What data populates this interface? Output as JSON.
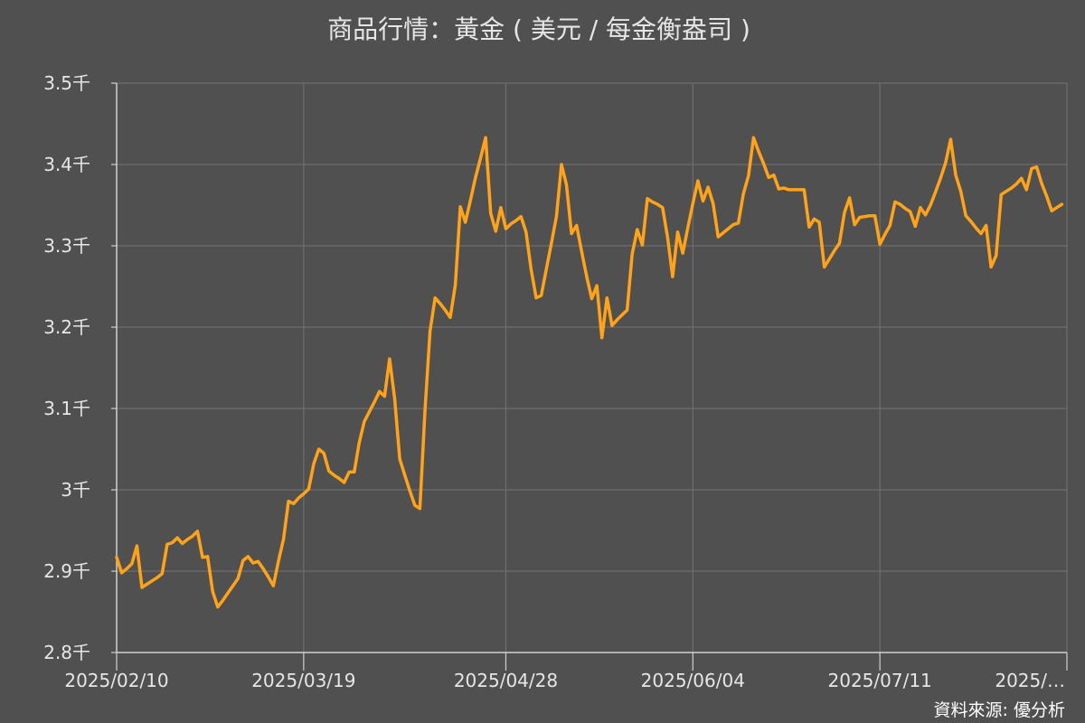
{
  "chart_data": {
    "type": "line",
    "title": "商品行情：黃金 ( 美元 / 每金衡盎司 )",
    "source": "資料來源: 優分析",
    "xlabel": "",
    "ylabel": "",
    "ylim": [
      2.8,
      3.5
    ],
    "y_unit": "千",
    "y_ticks": [
      "2.8千",
      "2.9千",
      "3千",
      "3.1千",
      "3.2千",
      "3.3千",
      "3.4千",
      "3.5千"
    ],
    "y_tick_values": [
      2.8,
      2.9,
      3.0,
      3.1,
      3.2,
      3.3,
      3.4,
      3.5
    ],
    "x_ticks": [
      "2025/02/10",
      "2025/03/19",
      "2025/04/28",
      "2025/06/04",
      "2025/07/11",
      "2025/…"
    ],
    "x_tick_index": [
      0,
      37,
      77,
      114,
      151,
      188
    ],
    "x_span": 188,
    "grid": true,
    "line_color": "#ffa31a",
    "series": [
      {
        "values": [
          [
            0,
            2.917
          ],
          [
            1,
            2.898
          ],
          [
            2,
            2.903
          ],
          [
            3,
            2.909
          ],
          [
            4,
            2.931
          ],
          [
            5,
            2.88
          ],
          [
            6,
            2.884
          ],
          [
            7,
            2.888
          ],
          [
            8,
            2.892
          ],
          [
            9,
            2.897
          ],
          [
            10,
            2.933
          ],
          [
            11,
            2.935
          ],
          [
            12,
            2.941
          ],
          [
            13,
            2.934
          ],
          [
            14,
            2.939
          ],
          [
            15,
            2.943
          ],
          [
            16,
            2.949
          ],
          [
            17,
            2.917
          ],
          [
            18,
            2.918
          ],
          [
            19,
            2.875
          ],
          [
            20,
            2.856
          ],
          [
            21,
            2.864
          ],
          [
            22,
            2.873
          ],
          [
            23,
            2.882
          ],
          [
            24,
            2.891
          ],
          [
            25,
            2.913
          ],
          [
            26,
            2.918
          ],
          [
            27,
            2.91
          ],
          [
            28,
            2.912
          ],
          [
            29,
            2.903
          ],
          [
            30,
            2.893
          ],
          [
            31,
            2.882
          ],
          [
            32,
            2.912
          ],
          [
            33,
            2.939
          ],
          [
            34,
            2.986
          ],
          [
            35,
            2.983
          ],
          [
            36,
            2.99
          ],
          [
            37,
            2.995
          ],
          [
            38,
            3.001
          ],
          [
            39,
            3.032
          ],
          [
            40,
            3.05
          ],
          [
            41,
            3.045
          ],
          [
            42,
            3.023
          ],
          [
            43,
            3.018
          ],
          [
            44,
            3.014
          ],
          [
            45,
            3.009
          ],
          [
            46,
            3.022
          ],
          [
            47,
            3.022
          ],
          [
            48,
            3.058
          ],
          [
            49,
            3.084
          ],
          [
            50,
            3.096
          ],
          [
            51,
            3.108
          ],
          [
            52,
            3.121
          ],
          [
            53,
            3.115
          ],
          [
            54,
            3.161
          ],
          [
            55,
            3.112
          ],
          [
            56,
            3.038
          ],
          [
            57,
            3.018
          ],
          [
            58,
            2.999
          ],
          [
            59,
            2.981
          ],
          [
            60,
            2.977
          ],
          [
            61,
            3.097
          ],
          [
            62,
            3.195
          ],
          [
            63,
            3.236
          ],
          [
            64,
            3.229
          ],
          [
            65,
            3.221
          ],
          [
            66,
            3.212
          ],
          [
            67,
            3.252
          ],
          [
            68,
            3.348
          ],
          [
            69,
            3.329
          ],
          [
            70,
            3.356
          ],
          [
            71,
            3.384
          ],
          [
            72,
            3.408
          ],
          [
            73,
            3.433
          ],
          [
            74,
            3.34
          ],
          [
            75,
            3.318
          ],
          [
            76,
            3.347
          ],
          [
            77,
            3.321
          ],
          [
            78,
            3.327
          ],
          [
            79,
            3.331
          ],
          [
            80,
            3.336
          ],
          [
            81,
            3.317
          ],
          [
            82,
            3.271
          ],
          [
            83,
            3.236
          ],
          [
            84,
            3.239
          ],
          [
            85,
            3.271
          ],
          [
            86,
            3.303
          ],
          [
            87,
            3.336
          ],
          [
            88,
            3.4
          ],
          [
            89,
            3.375
          ],
          [
            90,
            3.315
          ],
          [
            91,
            3.325
          ],
          [
            92,
            3.293
          ],
          [
            93,
            3.262
          ],
          [
            94,
            3.235
          ],
          [
            95,
            3.251
          ],
          [
            96,
            3.187
          ],
          [
            97,
            3.236
          ],
          [
            98,
            3.202
          ],
          [
            99,
            3.209
          ],
          [
            100,
            3.215
          ],
          [
            101,
            3.221
          ],
          [
            102,
            3.29
          ],
          [
            103,
            3.32
          ],
          [
            104,
            3.301
          ],
          [
            105,
            3.358
          ],
          [
            106,
            3.354
          ],
          [
            107,
            3.351
          ],
          [
            108,
            3.347
          ],
          [
            109,
            3.31
          ],
          [
            110,
            3.262
          ],
          [
            111,
            3.317
          ],
          [
            112,
            3.291
          ],
          [
            113,
            3.322
          ],
          [
            114,
            3.352
          ],
          [
            115,
            3.38
          ],
          [
            116,
            3.355
          ],
          [
            117,
            3.372
          ],
          [
            118,
            3.352
          ],
          [
            119,
            3.311
          ],
          [
            120,
            3.316
          ],
          [
            121,
            3.321
          ],
          [
            122,
            3.326
          ],
          [
            123,
            3.328
          ],
          [
            124,
            3.364
          ],
          [
            125,
            3.386
          ],
          [
            126,
            3.433
          ],
          [
            127,
            3.416
          ],
          [
            128,
            3.401
          ],
          [
            129,
            3.384
          ],
          [
            130,
            3.387
          ],
          [
            131,
            3.37
          ],
          [
            132,
            3.371
          ],
          [
            133,
            3.369
          ],
          [
            134,
            3.369
          ],
          [
            135,
            3.369
          ],
          [
            136,
            3.369
          ],
          [
            137,
            3.323
          ],
          [
            138,
            3.333
          ],
          [
            139,
            3.329
          ],
          [
            140,
            3.274
          ],
          [
            141,
            3.284
          ],
          [
            142,
            3.294
          ],
          [
            143,
            3.303
          ],
          [
            144,
            3.341
          ],
          [
            145,
            3.359
          ],
          [
            146,
            3.326
          ],
          [
            147,
            3.335
          ],
          [
            148,
            3.336
          ],
          [
            149,
            3.337
          ],
          [
            150,
            3.337
          ],
          [
            151,
            3.302
          ],
          [
            152,
            3.314
          ],
          [
            153,
            3.325
          ],
          [
            154,
            3.354
          ],
          [
            155,
            3.351
          ],
          [
            156,
            3.346
          ],
          [
            157,
            3.342
          ],
          [
            158,
            3.324
          ],
          [
            159,
            3.347
          ],
          [
            160,
            3.338
          ],
          [
            161,
            3.35
          ],
          [
            162,
            3.366
          ],
          [
            163,
            3.383
          ],
          [
            164,
            3.402
          ],
          [
            165,
            3.431
          ],
          [
            166,
            3.387
          ],
          [
            167,
            3.367
          ],
          [
            168,
            3.337
          ],
          [
            169,
            3.33
          ],
          [
            170,
            3.322
          ],
          [
            171,
            3.315
          ],
          [
            172,
            3.325
          ],
          [
            173,
            3.274
          ],
          [
            174,
            3.288
          ],
          [
            175,
            3.363
          ],
          [
            176,
            3.367
          ],
          [
            177,
            3.371
          ],
          [
            178,
            3.376
          ],
          [
            179,
            3.383
          ],
          [
            180,
            3.369
          ],
          [
            181,
            3.395
          ],
          [
            182,
            3.397
          ],
          [
            183,
            3.377
          ],
          [
            184,
            3.361
          ],
          [
            185,
            3.343
          ],
          [
            186,
            3.347
          ],
          [
            187,
            3.351
          ]
        ]
      }
    ]
  }
}
